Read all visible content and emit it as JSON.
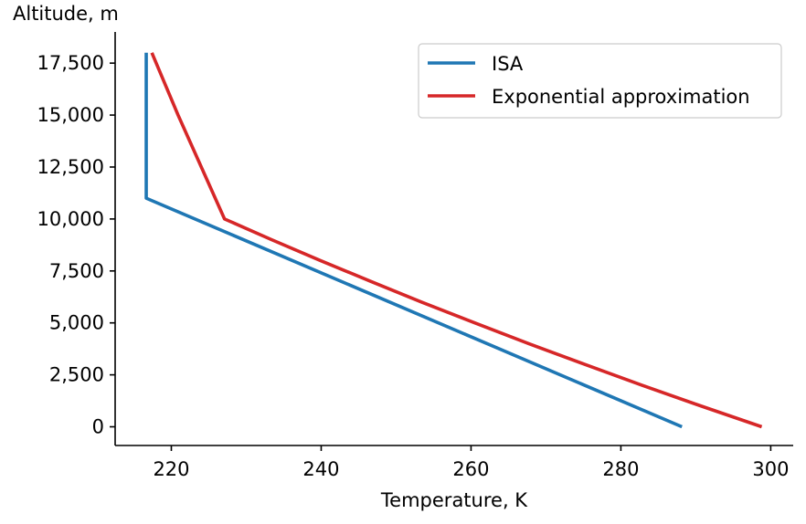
{
  "chart_data": {
    "type": "line",
    "xlabel": "Temperature, K",
    "ylabel": "Altitude, m",
    "xlim": [
      212.5,
      303
    ],
    "ylim": [
      -900,
      19000
    ],
    "xticks": [
      220,
      240,
      260,
      280,
      300
    ],
    "xtick_labels": [
      "220",
      "240",
      "260",
      "280",
      "300"
    ],
    "yticks": [
      0,
      2500,
      5000,
      7500,
      10000,
      12500,
      15000,
      17500
    ],
    "ytick_labels": [
      "0",
      "2,500",
      "5,000",
      "7,500",
      "10,000",
      "12,500",
      "15,000",
      "17,500"
    ],
    "grid": false,
    "legend_position": "top-right",
    "series": [
      {
        "name": "ISA",
        "color": "#1f77b4",
        "x": [
          288.15,
          216.65,
          216.65
        ],
        "y": [
          0,
          11000,
          18000
        ]
      },
      {
        "name": "Exponential approximation",
        "color": "#d62728",
        "x": [
          298.8,
          290.7,
          282.8,
          275.2,
          267.7,
          260.5,
          253.4,
          246.6,
          239.9,
          233.4,
          227.1,
          220.9,
          217.4
        ],
        "y": [
          0,
          1000,
          2000,
          3000,
          4000,
          5000,
          6000,
          7000,
          8000,
          9000,
          10000,
          15000,
          18000
        ]
      }
    ]
  }
}
